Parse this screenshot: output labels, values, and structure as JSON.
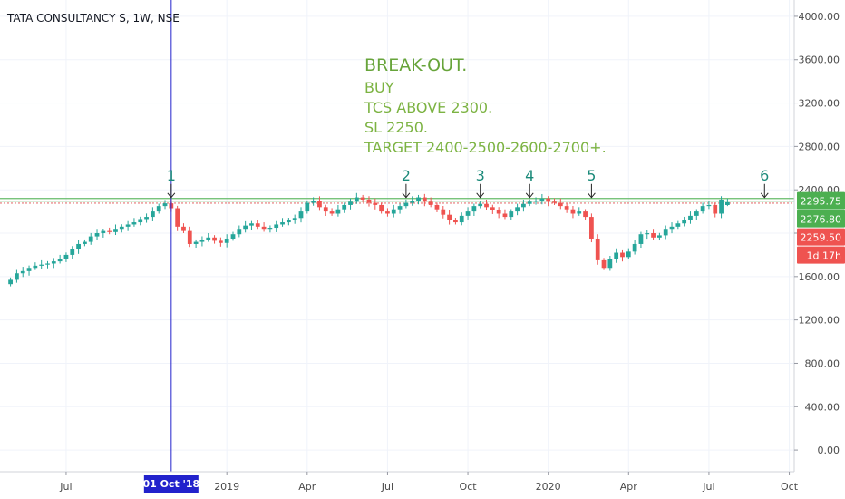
{
  "header": {
    "title": "TATA CONSULTANCY S, 1W, NSE"
  },
  "annotation": {
    "title": "BREAK-OUT.",
    "lines": [
      "BUY",
      "TCS ABOVE 2300.",
      "SL 2250.",
      "TARGET 2400-2500-2600-2700+."
    ]
  },
  "colors": {
    "up": "#26a69a",
    "down": "#ef5350",
    "accent_green": "#4caf50",
    "resistance": "#66bb6a",
    "crosshair": "#2222cc",
    "note": "#7cb342"
  },
  "chart_data": {
    "type": "candlestick",
    "title": "TATA CONSULTANCY S, 1W, NSE",
    "ylim": [
      -200,
      4150
    ],
    "y_ticks": [
      0,
      400,
      800,
      1200,
      1600,
      2000,
      2400,
      2800,
      3200,
      3600,
      4000
    ],
    "y_tick_labels": [
      "0.00",
      "400.00",
      "800.00",
      "1200.00",
      "1600.00",
      "2000.00",
      "2400.00",
      "2800.00",
      "3200.00",
      "3600.00",
      "4000.00"
    ],
    "x_ticks": [
      {
        "label": "Jul",
        "week": 9
      },
      {
        "label": "2019",
        "week": 35
      },
      {
        "label": "Apr",
        "week": 48
      },
      {
        "label": "Jul",
        "week": 61
      },
      {
        "label": "Oct",
        "week": 74
      },
      {
        "label": "2020",
        "week": 87
      },
      {
        "label": "Apr",
        "week": 100
      },
      {
        "label": "Jul",
        "week": 113
      },
      {
        "label": "Oct",
        "week": 126
      }
    ],
    "week_range": [
      -1.7,
      126.8
    ],
    "closes": [
      1570,
      1630,
      1650,
      1680,
      1700,
      1710,
      1720,
      1740,
      1760,
      1800,
      1850,
      1900,
      1920,
      1970,
      2000,
      2020,
      2010,
      2040,
      2060,
      2080,
      2100,
      2130,
      2150,
      2200,
      2250,
      2275,
      2230,
      2060,
      2020,
      1900,
      1920,
      1940,
      1960,
      1930,
      1910,
      1950,
      1990,
      2040,
      2070,
      2090,
      2060,
      2040,
      2050,
      2080,
      2100,
      2120,
      2140,
      2200,
      2280,
      2300,
      2240,
      2200,
      2180,
      2220,
      2260,
      2290,
      2330,
      2310,
      2280,
      2260,
      2200,
      2180,
      2220,
      2250,
      2280,
      2300,
      2330,
      2290,
      2260,
      2220,
      2170,
      2120,
      2100,
      2160,
      2200,
      2250,
      2270,
      2240,
      2210,
      2180,
      2150,
      2200,
      2240,
      2270,
      2290,
      2300,
      2320,
      2290,
      2280,
      2250,
      2220,
      2180,
      2200,
      2150,
      1950,
      1750,
      1680,
      1760,
      1820,
      1780,
      1830,
      1900,
      1990,
      2000,
      1960,
      1980,
      2040,
      2060,
      2090,
      2120,
      2160,
      2200,
      2250,
      2260,
      2180,
      2310,
      2285
    ],
    "last_candle": {
      "open": 2259.5,
      "high": 2320,
      "low": 2250,
      "close": 2285
    },
    "crosshair": {
      "week": 26,
      "label": "01 Oct '18"
    },
    "resistance_lines": [
      2320,
      2295.75,
      2276.8
    ],
    "breakout_markers": [
      {
        "label": "1",
        "week": 26
      },
      {
        "label": "2",
        "week": 64
      },
      {
        "label": "3",
        "week": 76
      },
      {
        "label": "4",
        "week": 84
      },
      {
        "label": "5",
        "week": 94
      },
      {
        "label": "6",
        "week": 122
      }
    ],
    "price_tags": [
      {
        "label": "2295.75",
        "value": 2295.75,
        "color": "#4caf50"
      },
      {
        "label": "2276.80",
        "value": 2276.8,
        "color": "#4caf50"
      },
      {
        "label": "2259.50",
        "value": 2259.5,
        "color": "#ef5350"
      },
      {
        "label": "1d 17h",
        "value": 2080,
        "color": "#ef5350"
      }
    ]
  }
}
